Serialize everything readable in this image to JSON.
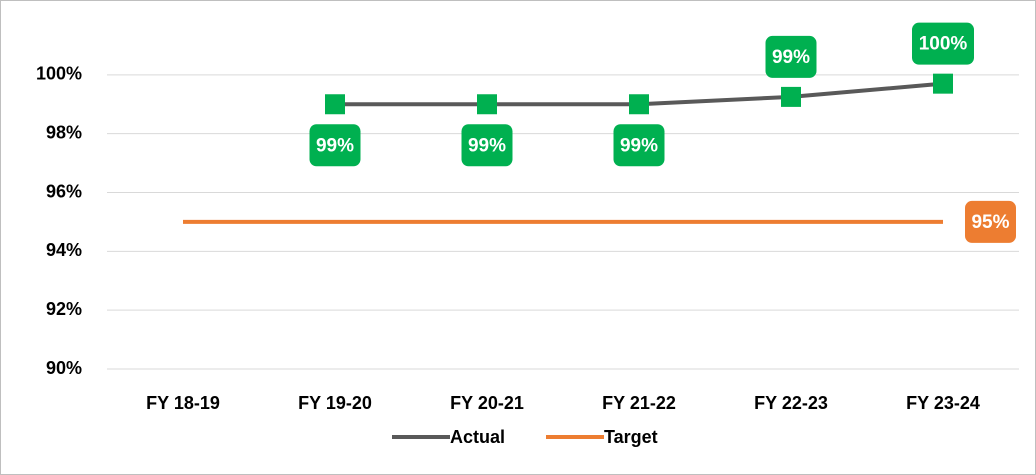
{
  "chart_data": {
    "type": "line",
    "categories": [
      "FY 18-19",
      "FY 19-20",
      "FY 20-21",
      "FY 21-22",
      "FY 22-23",
      "FY 23-24"
    ],
    "series": [
      {
        "name": "Actual",
        "color": "#595959",
        "marker_color": "#00b050",
        "values": [
          null,
          99,
          99,
          99,
          99.25,
          99.7
        ],
        "value_labels": [
          null,
          "99%",
          "99%",
          "99%",
          "99%",
          "100%"
        ]
      },
      {
        "name": "Target",
        "color": "#ed7d31",
        "values": [
          95,
          95,
          95,
          95,
          95,
          95
        ],
        "value_labels": [
          null,
          null,
          null,
          null,
          null,
          "95%"
        ]
      }
    ],
    "ylim": [
      90,
      102
    ],
    "yticks": [
      {
        "value": 90,
        "label": "90%"
      },
      {
        "value": 92,
        "label": "92%"
      },
      {
        "value": 94,
        "label": "94%"
      },
      {
        "value": 96,
        "label": "96%"
      },
      {
        "value": 98,
        "label": "98%"
      },
      {
        "value": 100,
        "label": "100%"
      }
    ],
    "grid": true,
    "legend": "bottom"
  }
}
